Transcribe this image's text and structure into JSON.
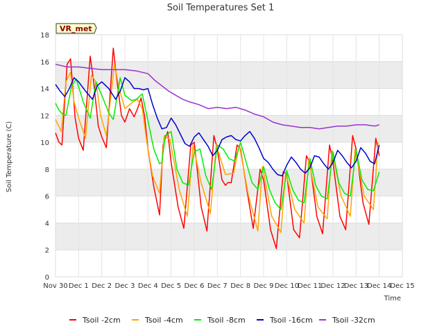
{
  "chart_data": {
    "type": "line",
    "title": "Soil Temperatures Set 1",
    "xlabel": "Time",
    "ylabel": "Soil Temperature (C)",
    "station_tag": "VR_met",
    "xlim": [
      0,
      15
    ],
    "ylim": [
      0,
      18
    ],
    "x_ticks": [
      0,
      1,
      2,
      3,
      4,
      5,
      6,
      7,
      8,
      9,
      10,
      11,
      12,
      13,
      14,
      15
    ],
    "x_tick_labels": [
      "Nov 30",
      "Dec 1",
      "Dec 2",
      "Dec 3",
      "Dec 4",
      "Dec 5",
      "Dec 6",
      "Dec 7",
      "Dec 8",
      "Dec 9",
      "Dec 10",
      "Dec 11",
      "Dec 12",
      "Dec 13",
      "Dec 14",
      "Dec 15"
    ],
    "y_ticks": [
      0,
      2,
      4,
      6,
      8,
      10,
      12,
      14,
      16,
      18
    ],
    "y_tick_labels": [
      "0",
      "2",
      "4",
      "6",
      "8",
      "10",
      "12",
      "14",
      "16",
      "18"
    ],
    "band_color": "#ececec",
    "series": [
      {
        "name": "Tsoil -2cm",
        "color": "#ff0000",
        "x": [
          0.0,
          0.15,
          0.28,
          0.5,
          0.65,
          0.85,
          1.0,
          1.2,
          1.5,
          1.65,
          1.85,
          2.0,
          2.2,
          2.5,
          2.65,
          2.85,
          3.0,
          3.2,
          3.4,
          3.55,
          3.7,
          3.85,
          4.0,
          4.25,
          4.5,
          4.65,
          4.85,
          5.0,
          5.3,
          5.55,
          5.85,
          6.0,
          6.3,
          6.55,
          6.85,
          7.0,
          7.2,
          7.35,
          7.45,
          7.6,
          7.85,
          8.0,
          8.3,
          8.55,
          8.85,
          9.0,
          9.3,
          9.55,
          9.85,
          10.0,
          10.3,
          10.55,
          10.85,
          11.0,
          11.3,
          11.55,
          11.85,
          12.0,
          12.3,
          12.55,
          12.85,
          13.0,
          13.3,
          13.55,
          13.85,
          14.0
        ],
        "y": [
          10.7,
          10.0,
          9.8,
          15.8,
          16.2,
          11.8,
          10.3,
          9.4,
          16.4,
          14.5,
          11.2,
          10.4,
          9.6,
          17.0,
          14.7,
          12.0,
          11.5,
          12.5,
          11.9,
          12.5,
          13.3,
          12.0,
          9.5,
          6.7,
          4.6,
          9.8,
          10.8,
          8.5,
          5.2,
          3.6,
          9.8,
          10.0,
          5.2,
          3.4,
          10.5,
          9.5,
          7.2,
          6.8,
          7.0,
          7.0,
          9.8,
          9.5,
          6.2,
          3.6,
          8.0,
          7.2,
          3.5,
          2.1,
          7.8,
          7.6,
          3.5,
          2.9,
          9.0,
          8.5,
          4.5,
          3.2,
          9.8,
          8.5,
          4.5,
          3.5,
          10.5,
          9.5,
          5.5,
          3.9,
          10.3,
          9.0
        ]
      },
      {
        "name": "Tsoil -4cm",
        "color": "#ffa500",
        "x": [
          0.0,
          0.25,
          0.45,
          0.65,
          0.8,
          1.0,
          1.3,
          1.55,
          1.75,
          1.95,
          2.2,
          2.55,
          2.75,
          3.0,
          3.35,
          3.55,
          3.75,
          3.95,
          4.2,
          4.5,
          4.7,
          4.95,
          5.35,
          5.7,
          5.95,
          6.3,
          6.7,
          6.95,
          7.35,
          7.7,
          7.95,
          8.35,
          8.75,
          8.95,
          9.35,
          9.75,
          9.95,
          10.35,
          10.75,
          10.95,
          11.35,
          11.75,
          11.95,
          12.35,
          12.75,
          12.95,
          13.35,
          13.75,
          13.95
        ],
        "y": [
          11.7,
          10.8,
          14.5,
          15.2,
          13.0,
          11.8,
          10.3,
          15.0,
          14.5,
          12.0,
          10.5,
          15.8,
          14.0,
          12.5,
          13.0,
          13.2,
          12.5,
          10.0,
          7.5,
          6.2,
          10.5,
          10.2,
          6.5,
          4.5,
          9.8,
          7.0,
          4.7,
          9.8,
          7.6,
          7.7,
          9.8,
          6.0,
          3.4,
          8.2,
          4.5,
          3.3,
          7.8,
          5.0,
          4.0,
          8.7,
          5.2,
          4.3,
          9.4,
          6.0,
          4.5,
          9.5,
          6.0,
          5.0,
          10.0
        ]
      },
      {
        "name": "Tsoil -8cm",
        "color": "#00ee00",
        "x": [
          0.0,
          0.15,
          0.3,
          0.45,
          0.7,
          0.9,
          1.2,
          1.5,
          1.75,
          2.0,
          2.3,
          2.5,
          2.8,
          3.0,
          3.3,
          3.5,
          3.75,
          4.0,
          4.25,
          4.5,
          4.6,
          4.75,
          5.0,
          5.25,
          5.5,
          5.75,
          6.0,
          6.25,
          6.5,
          6.75,
          7.0,
          7.25,
          7.5,
          7.75,
          8.0,
          8.25,
          8.5,
          8.75,
          9.0,
          9.25,
          9.5,
          9.75,
          10.0,
          10.25,
          10.5,
          10.75,
          11.0,
          11.25,
          11.5,
          11.75,
          12.0,
          12.25,
          12.5,
          12.75,
          13.0,
          13.25,
          13.5,
          13.75,
          14.0
        ],
        "y": [
          12.9,
          12.4,
          12.1,
          12.0,
          14.2,
          14.7,
          13.0,
          11.8,
          14.5,
          13.5,
          12.2,
          11.7,
          14.8,
          13.5,
          13.1,
          13.2,
          13.6,
          11.6,
          9.5,
          8.4,
          8.5,
          10.5,
          10.8,
          8.0,
          7.0,
          6.8,
          9.3,
          9.5,
          7.5,
          6.5,
          9.8,
          9.5,
          8.8,
          8.6,
          10.0,
          8.5,
          7.0,
          6.5,
          8.2,
          6.5,
          5.5,
          5.0,
          7.9,
          6.5,
          5.7,
          5.5,
          8.8,
          6.8,
          6.0,
          5.8,
          9.3,
          7.0,
          6.2,
          6.0,
          9.4,
          7.2,
          6.5,
          6.4,
          7.8
        ]
      },
      {
        "name": "Tsoil -16cm",
        "color": "#0000cc",
        "x": [
          0.0,
          0.2,
          0.4,
          0.6,
          0.8,
          1.0,
          1.3,
          1.6,
          1.8,
          2.0,
          2.3,
          2.6,
          2.8,
          3.0,
          3.2,
          3.4,
          3.6,
          3.8,
          4.0,
          4.2,
          4.4,
          4.6,
          4.8,
          5.0,
          5.2,
          5.4,
          5.6,
          5.8,
          6.0,
          6.2,
          6.4,
          6.6,
          6.8,
          7.0,
          7.2,
          7.4,
          7.6,
          7.8,
          8.0,
          8.2,
          8.4,
          8.6,
          8.8,
          9.0,
          9.2,
          9.4,
          9.6,
          9.8,
          10.0,
          10.2,
          10.4,
          10.6,
          10.8,
          11.0,
          11.2,
          11.4,
          11.6,
          11.8,
          12.0,
          12.2,
          12.4,
          12.6,
          12.8,
          13.0,
          13.2,
          13.4,
          13.6,
          13.8,
          14.0
        ],
        "y": [
          14.3,
          13.8,
          13.4,
          14.0,
          14.8,
          14.5,
          13.8,
          13.2,
          14.2,
          14.5,
          14.0,
          13.2,
          13.8,
          14.8,
          14.5,
          14.0,
          14.0,
          13.9,
          14.0,
          12.8,
          11.8,
          11.0,
          11.1,
          11.8,
          11.3,
          10.6,
          9.9,
          9.7,
          10.4,
          10.7,
          10.2,
          9.7,
          9.0,
          9.4,
          10.2,
          10.4,
          10.5,
          10.2,
          10.1,
          10.5,
          10.8,
          10.3,
          9.6,
          8.8,
          8.5,
          8.0,
          7.6,
          7.5,
          8.3,
          8.9,
          8.5,
          8.0,
          7.7,
          8.1,
          9.0,
          8.9,
          8.4,
          8.0,
          8.5,
          9.4,
          9.0,
          8.5,
          8.1,
          8.6,
          9.6,
          9.2,
          8.6,
          8.4,
          9.8
        ]
      },
      {
        "name": "Tsoil -32cm",
        "color": "#9932cc",
        "x": [
          0.0,
          0.5,
          1.0,
          1.5,
          2.0,
          2.5,
          3.0,
          3.5,
          4.0,
          4.3,
          4.6,
          4.9,
          5.2,
          5.5,
          5.8,
          6.2,
          6.6,
          7.0,
          7.4,
          7.8,
          8.2,
          8.6,
          9.0,
          9.4,
          9.8,
          10.2,
          10.6,
          11.0,
          11.4,
          11.8,
          12.2,
          12.6,
          13.0,
          13.4,
          13.8,
          14.0
        ],
        "y": [
          15.8,
          15.6,
          15.6,
          15.5,
          15.4,
          15.4,
          15.4,
          15.3,
          15.1,
          14.6,
          14.2,
          13.8,
          13.5,
          13.2,
          13.0,
          12.8,
          12.5,
          12.6,
          12.5,
          12.6,
          12.4,
          12.1,
          11.9,
          11.5,
          11.3,
          11.2,
          11.1,
          11.1,
          11.0,
          11.1,
          11.2,
          11.2,
          11.3,
          11.3,
          11.2,
          11.3
        ]
      }
    ]
  }
}
